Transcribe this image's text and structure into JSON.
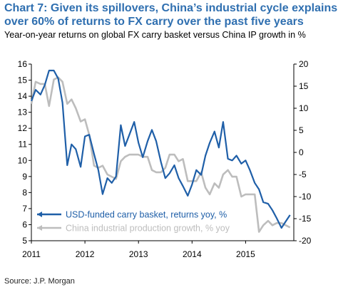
{
  "title": "Chart 7: Given its spillovers, China’s industrial cycle explains over 60% of returns to FX carry over the past five years",
  "subtitle": "Year-on-year returns on global FX carry basket versus China IP growth in %",
  "source": "Source: J.P. Morgan",
  "colors": {
    "carry": "#1f5fa8",
    "ip": "#bdbdbd",
    "title": "#2f6fb0"
  },
  "chart_data": {
    "type": "line",
    "x_ticks": [
      "2011",
      "2012",
      "2013",
      "2014",
      "2015"
    ],
    "xlim": [
      2011.0,
      2015.9
    ],
    "y_left": {
      "lim": [
        5,
        16
      ],
      "ticks": [
        "5",
        "6",
        "7",
        "8",
        "9",
        "10",
        "11",
        "12",
        "13",
        "14",
        "15",
        "16"
      ]
    },
    "y_right": {
      "lim": [
        -20,
        20
      ],
      "ticks": [
        "-20",
        "-15",
        "-10",
        "-5",
        "0",
        "5",
        "10",
        "15",
        "20"
      ]
    },
    "legend": {
      "placement": "bottom-left"
    },
    "series": [
      {
        "name": "USD-funded carry basket, returns yoy, %",
        "axis": "left",
        "x": [
          2011.0,
          2011.08,
          2011.17,
          2011.25,
          2011.33,
          2011.42,
          2011.5,
          2011.58,
          2011.67,
          2011.75,
          2011.83,
          2011.92,
          2012.0,
          2012.08,
          2012.17,
          2012.25,
          2012.33,
          2012.42,
          2012.5,
          2012.58,
          2012.67,
          2012.75,
          2012.83,
          2012.92,
          2013.0,
          2013.08,
          2013.17,
          2013.25,
          2013.33,
          2013.42,
          2013.5,
          2013.58,
          2013.67,
          2013.75,
          2013.83,
          2013.92,
          2014.0,
          2014.08,
          2014.17,
          2014.25,
          2014.33,
          2014.42,
          2014.5,
          2014.58,
          2014.67,
          2014.75,
          2014.83,
          2014.92,
          2015.0,
          2015.08,
          2015.17,
          2015.25,
          2015.33,
          2015.42,
          2015.5,
          2015.58,
          2015.67,
          2015.75,
          2015.83
        ],
        "values": [
          13.7,
          14.4,
          14.1,
          14.7,
          15.6,
          15.6,
          15.1,
          13.6,
          9.7,
          11.0,
          10.7,
          9.6,
          11.5,
          11.6,
          10.4,
          9.4,
          7.9,
          8.9,
          8.6,
          9.0,
          12.2,
          10.9,
          11.6,
          12.4,
          11.1,
          10.2,
          11.2,
          11.9,
          11.2,
          9.9,
          8.9,
          9.2,
          9.7,
          8.9,
          8.4,
          7.8,
          8.5,
          9.4,
          9.1,
          10.3,
          11.1,
          11.8,
          10.8,
          12.4,
          10.1,
          10.0,
          10.3,
          9.8,
          10.0,
          9.4,
          8.6,
          8.2,
          7.4,
          7.3,
          6.9,
          6.4,
          5.8,
          6.2,
          6.6
        ]
      },
      {
        "name": "China industrial production growth, % yoy",
        "axis": "right",
        "x": [
          2011.0,
          2011.08,
          2011.17,
          2011.25,
          2011.33,
          2011.42,
          2011.5,
          2011.58,
          2011.67,
          2011.75,
          2011.83,
          2011.92,
          2012.0,
          2012.08,
          2012.17,
          2012.25,
          2012.33,
          2012.42,
          2012.5,
          2012.58,
          2012.67,
          2012.75,
          2012.83,
          2012.92,
          2013.0,
          2013.08,
          2013.17,
          2013.25,
          2013.33,
          2013.42,
          2013.5,
          2013.58,
          2013.67,
          2013.75,
          2013.83,
          2013.92,
          2014.0,
          2014.08,
          2014.17,
          2014.25,
          2014.33,
          2014.42,
          2014.5,
          2014.58,
          2014.67,
          2014.75,
          2014.83,
          2014.92,
          2015.0,
          2015.08,
          2015.17,
          2015.25,
          2015.33,
          2015.42,
          2015.5,
          2015.58,
          2015.67,
          2015.75,
          2015.83
        ],
        "values": [
          11,
          16,
          15.5,
          15.5,
          10.5,
          16.5,
          17,
          16,
          11,
          12,
          10,
          7,
          7.5,
          4,
          -3,
          -3.5,
          -3,
          -5,
          -5.5,
          -6,
          -2,
          -1,
          -0.5,
          -0.5,
          -0.5,
          -1,
          -1,
          -4,
          -4.5,
          -4.5,
          -3.5,
          -0.5,
          -0.5,
          -2,
          -1.5,
          -6.5,
          -6.5,
          -6.5,
          -4.5,
          -8,
          -9.5,
          -7,
          -8,
          -5,
          -4,
          -5.5,
          -5.5,
          -10,
          -9.5,
          -9.5,
          -9.5,
          -18,
          -16.5,
          -15.5,
          -16.5,
          -16,
          -16,
          -16.5,
          -17
        ]
      }
    ]
  }
}
